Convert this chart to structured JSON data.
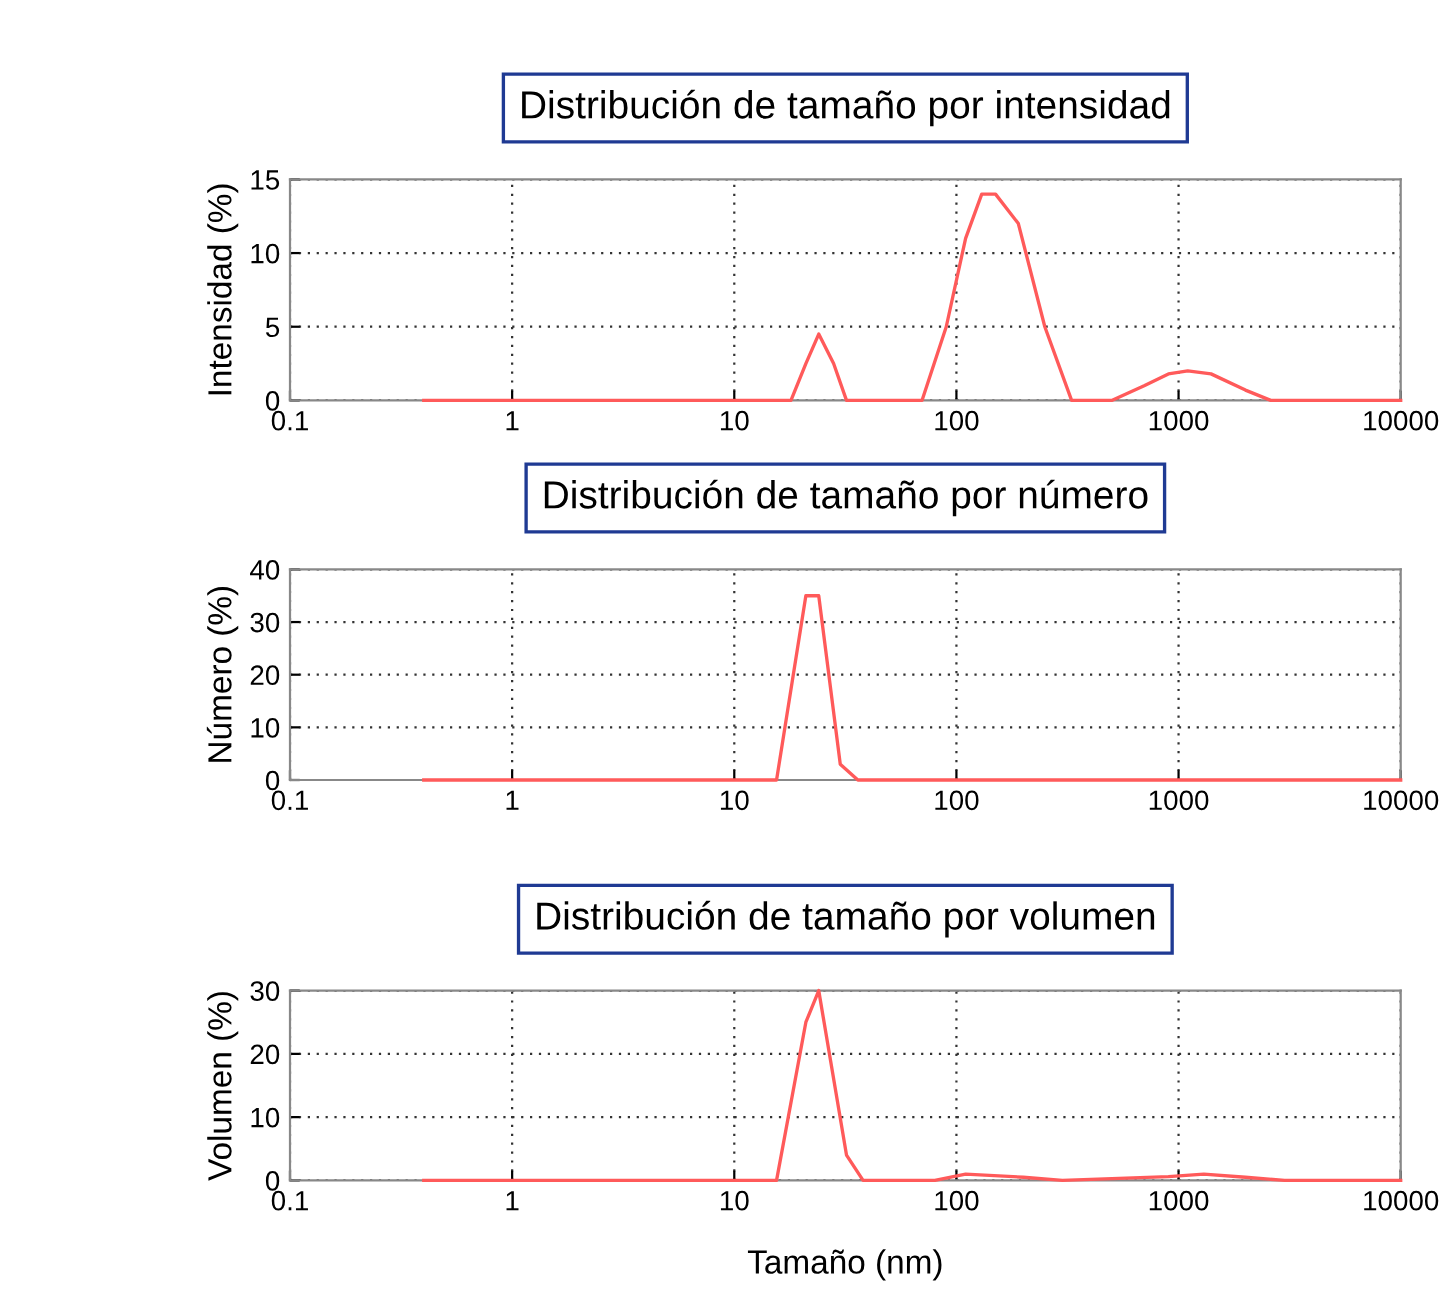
{
  "chart_data": [
    {
      "type": "line",
      "title": "Distribución de tamaño por intensidad",
      "ylabel": "Intensidad (%)",
      "log": "x",
      "xlim": [
        0.1,
        10000
      ],
      "xticks": [
        0.1,
        1,
        10,
        100,
        1000,
        10000
      ],
      "ylim": [
        0,
        15
      ],
      "yticks": [
        0,
        5,
        10,
        15
      ],
      "grid": true,
      "marker": "none",
      "line_style": "solid",
      "series": [
        {
          "color": "#ff5a5a",
          "x": [
            0.4,
            10,
            18,
            21,
            24,
            28,
            32,
            50,
            70,
            90,
            110,
            130,
            150,
            190,
            250,
            330,
            500,
            700,
            900,
            1100,
            1400,
            2000,
            2600,
            5000,
            10000
          ],
          "values": [
            0,
            0,
            0,
            2.5,
            4.5,
            2.5,
            0,
            0,
            0,
            5,
            11,
            14,
            14,
            12,
            5,
            0,
            0,
            1,
            1.8,
            2,
            1.8,
            0.7,
            0,
            0,
            0
          ]
        }
      ]
    },
    {
      "type": "line",
      "title": "Distribución de tamaño por número",
      "ylabel": "Número (%)",
      "log": "x",
      "xlim": [
        0.1,
        10000
      ],
      "xticks": [
        0.1,
        1,
        10,
        100,
        1000,
        10000
      ],
      "ylim": [
        0,
        40
      ],
      "yticks": [
        0,
        10,
        20,
        30,
        40
      ],
      "grid": true,
      "marker": "none",
      "line_style": "solid",
      "series": [
        {
          "color": "#ff5a5a",
          "x": [
            0.4,
            10,
            15.5,
            21,
            24,
            30,
            36,
            100,
            1000,
            10000
          ],
          "values": [
            0,
            0,
            0,
            35,
            35,
            3,
            0,
            0,
            0,
            0
          ]
        }
      ]
    },
    {
      "type": "line",
      "title": "Distribución de tamaño por volumen",
      "ylabel": "Volumen (%)",
      "xlabel": "Tamaño (nm)",
      "log": "x",
      "xlim": [
        0.1,
        10000
      ],
      "xticks": [
        0.1,
        1,
        10,
        100,
        1000,
        10000
      ],
      "ylim": [
        0,
        30
      ],
      "yticks": [
        0,
        10,
        20,
        30
      ],
      "grid": true,
      "marker": "none",
      "line_style": "solid",
      "series": [
        {
          "color": "#ff5a5a",
          "x": [
            0.4,
            10,
            15.5,
            21,
            24,
            32,
            38,
            80,
            110,
            200,
            300,
            900,
            1300,
            2000,
            3000,
            10000
          ],
          "values": [
            0,
            0,
            0,
            25,
            30,
            4,
            0,
            0,
            1,
            0.5,
            0,
            0.6,
            1,
            0.5,
            0,
            0
          ]
        }
      ]
    }
  ]
}
